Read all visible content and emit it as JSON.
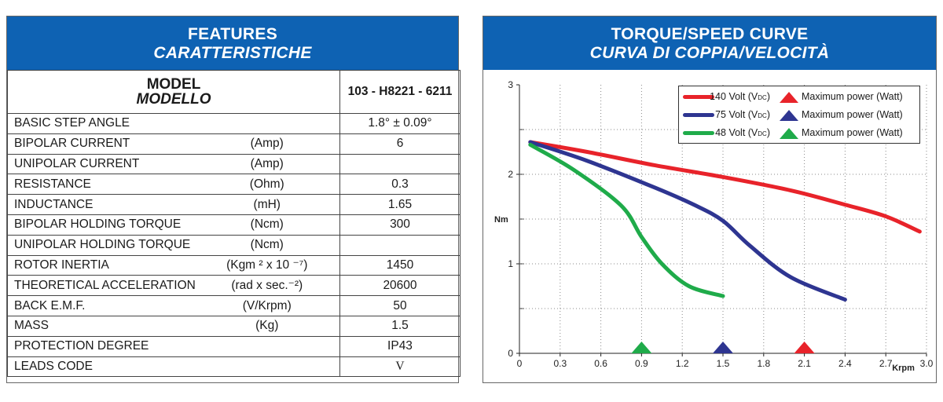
{
  "features": {
    "title": "FEATURES",
    "title_it": "CARATTERISTICHE",
    "model_label": "MODEL",
    "model_label_it": "MODELLO",
    "model_value": "103 - H8221 - 6211",
    "rows": [
      {
        "label": "BASIC STEP ANGLE",
        "unit": "",
        "value": "1.8°  ± 0.09°"
      },
      {
        "label": "BIPOLAR CURRENT",
        "unit": "(Amp)",
        "value": "6"
      },
      {
        "label": "UNIPOLAR CURRENT",
        "unit": "(Amp)",
        "value": ""
      },
      {
        "label": "RESISTANCE",
        "unit": "(Ohm)",
        "value": "0.3"
      },
      {
        "label": "INDUCTANCE",
        "unit": "(mH)",
        "value": "1.65"
      },
      {
        "label": "BIPOLAR HOLDING TORQUE",
        "unit": "(Ncm)",
        "value": "300"
      },
      {
        "label": "UNIPOLAR HOLDING TORQUE",
        "unit": "(Ncm)",
        "value": ""
      },
      {
        "label": "ROTOR INERTIA",
        "unit": "(Kgm ² x 10 ⁻⁷)",
        "value": "1450"
      },
      {
        "label": "THEORETICAL ACCELERATION",
        "unit": "(rad x sec.⁻²)",
        "value": "20600"
      },
      {
        "label": "BACK E.M.F.",
        "unit": "(V/Krpm)",
        "value": "50"
      },
      {
        "label": "MASS",
        "unit": "(Kg)",
        "value": "1.5"
      },
      {
        "label": "PROTECTION DEGREE",
        "unit": "",
        "value": "IP43"
      },
      {
        "label": "LEADS CODE",
        "unit": "",
        "value": "V"
      }
    ]
  },
  "chart_header": {
    "title": "TORQUE/SPEED CURVE",
    "title_it": "CURVA DI COPPIA/VELOCITÀ"
  },
  "chart_data": {
    "type": "line",
    "xlabel": "Krpm",
    "ylabel": "Nm",
    "xlim": [
      0,
      3.0
    ],
    "ylim": [
      0,
      3
    ],
    "x_ticks": [
      "0",
      "0.3",
      "0.6",
      "0.9",
      "1.2",
      "1.5",
      "1.8",
      "2.1",
      "2.4",
      "2.7",
      "3.0"
    ],
    "y_ticks": [
      "0",
      "1",
      "2",
      "3"
    ],
    "grid": "vertical dotted",
    "legend_position": "top-right",
    "legend_suffix": "Maximum power (Watt)",
    "series": [
      {
        "name": "140 Volt (V",
        "sub": "DC",
        "color": "#e8232a",
        "x": [
          0.08,
          0.5,
          1.0,
          1.5,
          2.0,
          2.4,
          2.7,
          2.95
        ],
        "y": [
          2.36,
          2.25,
          2.1,
          1.97,
          1.82,
          1.66,
          1.53,
          1.36
        ],
        "max_power_x": 2.1
      },
      {
        "name": "75 Volt (V",
        "sub": "DC",
        "color": "#2e3591",
        "x": [
          0.08,
          0.5,
          1.0,
          1.3,
          1.5,
          1.7,
          2.0,
          2.4
        ],
        "y": [
          2.36,
          2.15,
          1.85,
          1.65,
          1.48,
          1.2,
          0.85,
          0.6
        ],
        "max_power_x": 1.5
      },
      {
        "name": "48 Volt (V",
        "sub": "DC",
        "color": "#1fab4a",
        "x": [
          0.08,
          0.4,
          0.75,
          0.9,
          1.05,
          1.25,
          1.5
        ],
        "y": [
          2.33,
          2.05,
          1.65,
          1.3,
          1.0,
          0.75,
          0.64
        ],
        "max_power_x": 0.9
      }
    ]
  }
}
